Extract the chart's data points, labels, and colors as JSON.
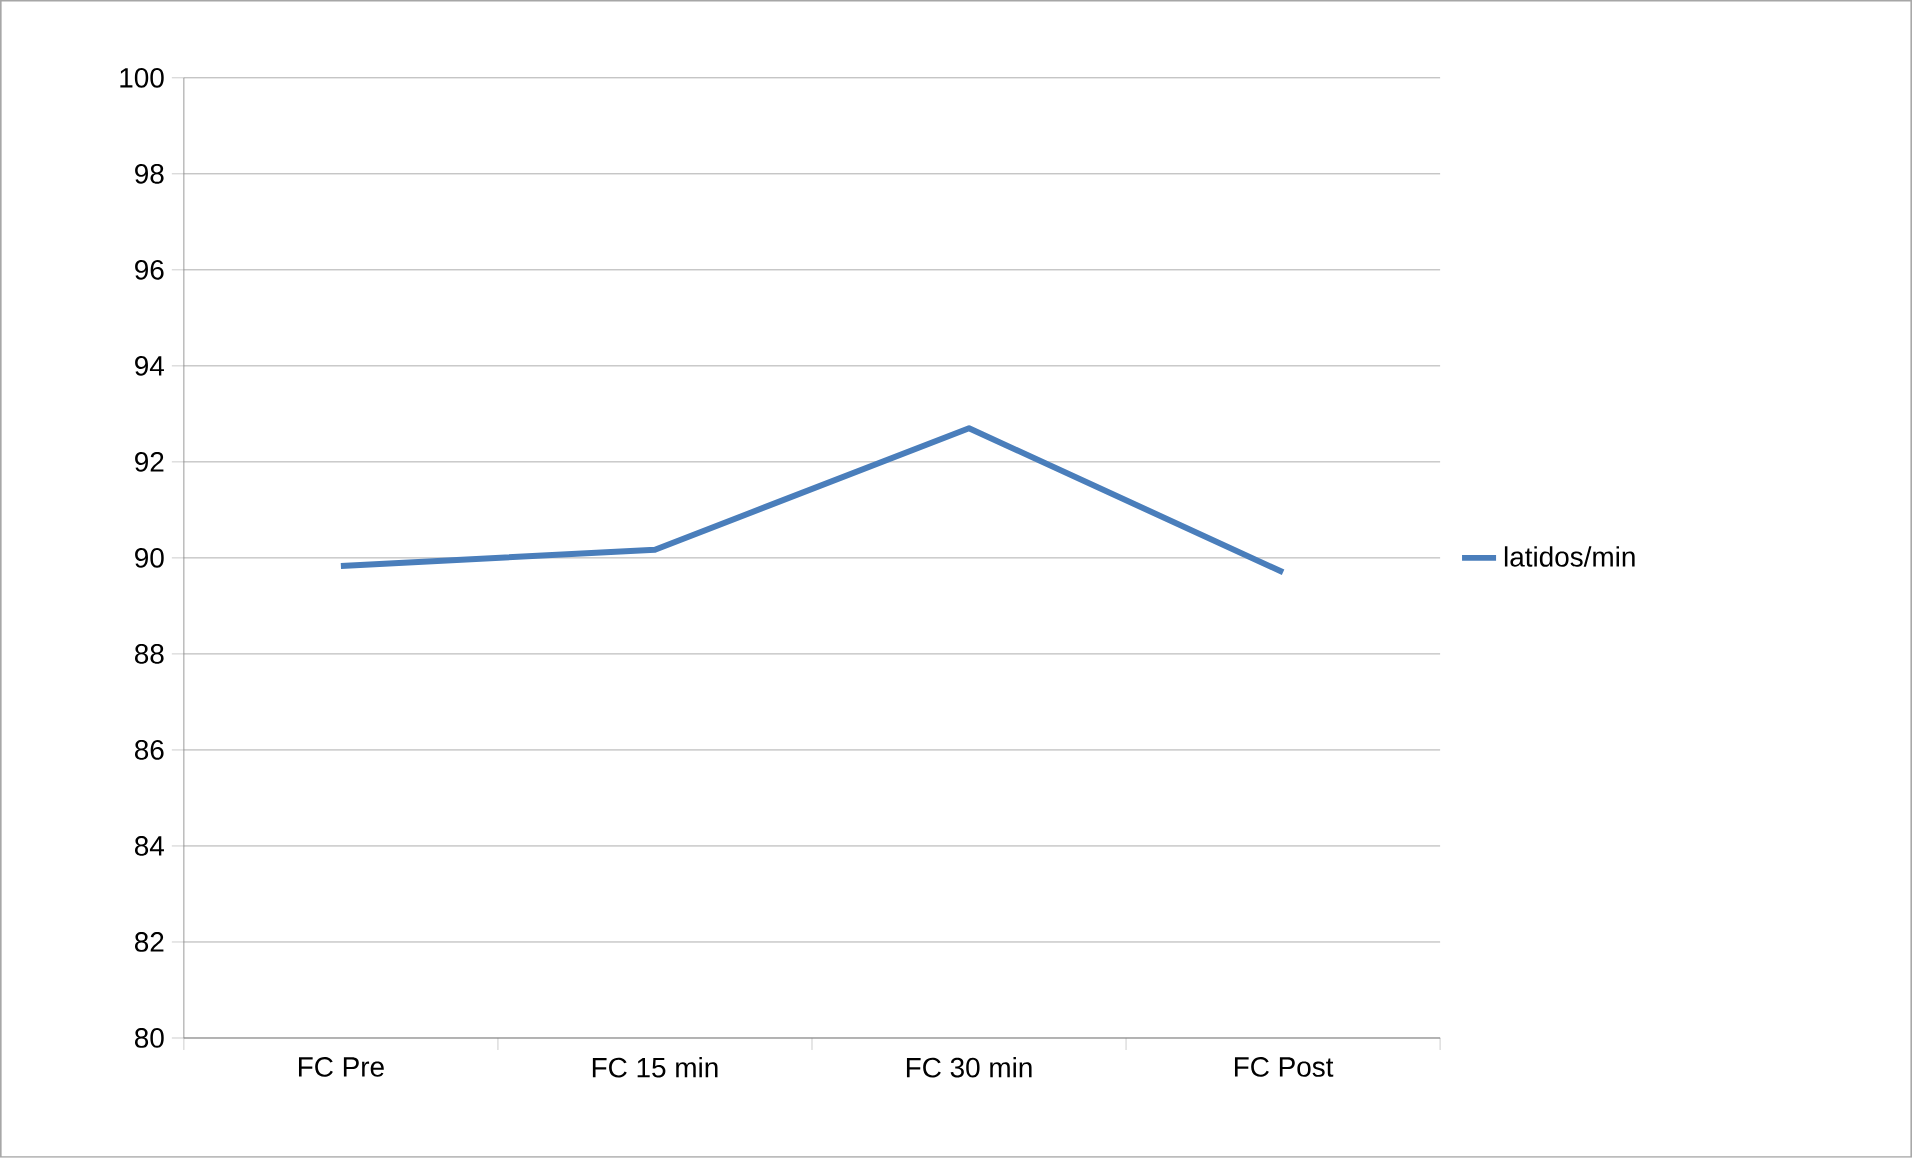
{
  "chart_data": {
    "type": "line",
    "categories": [
      "FC Pre",
      "FC 15 min",
      "FC 30 min",
      "FC Post"
    ],
    "series": [
      {
        "name": "latidos/min",
        "color": "#4a7ebb",
        "values": [
          89.83,
          90.17,
          92.7,
          89.7
        ]
      }
    ],
    "ylim": [
      80,
      100
    ],
    "yticks": [
      80,
      82,
      84,
      86,
      88,
      90,
      92,
      94,
      96,
      98,
      100
    ],
    "grid": "y",
    "legend": "right",
    "marker": "none",
    "line_style": "solid"
  }
}
